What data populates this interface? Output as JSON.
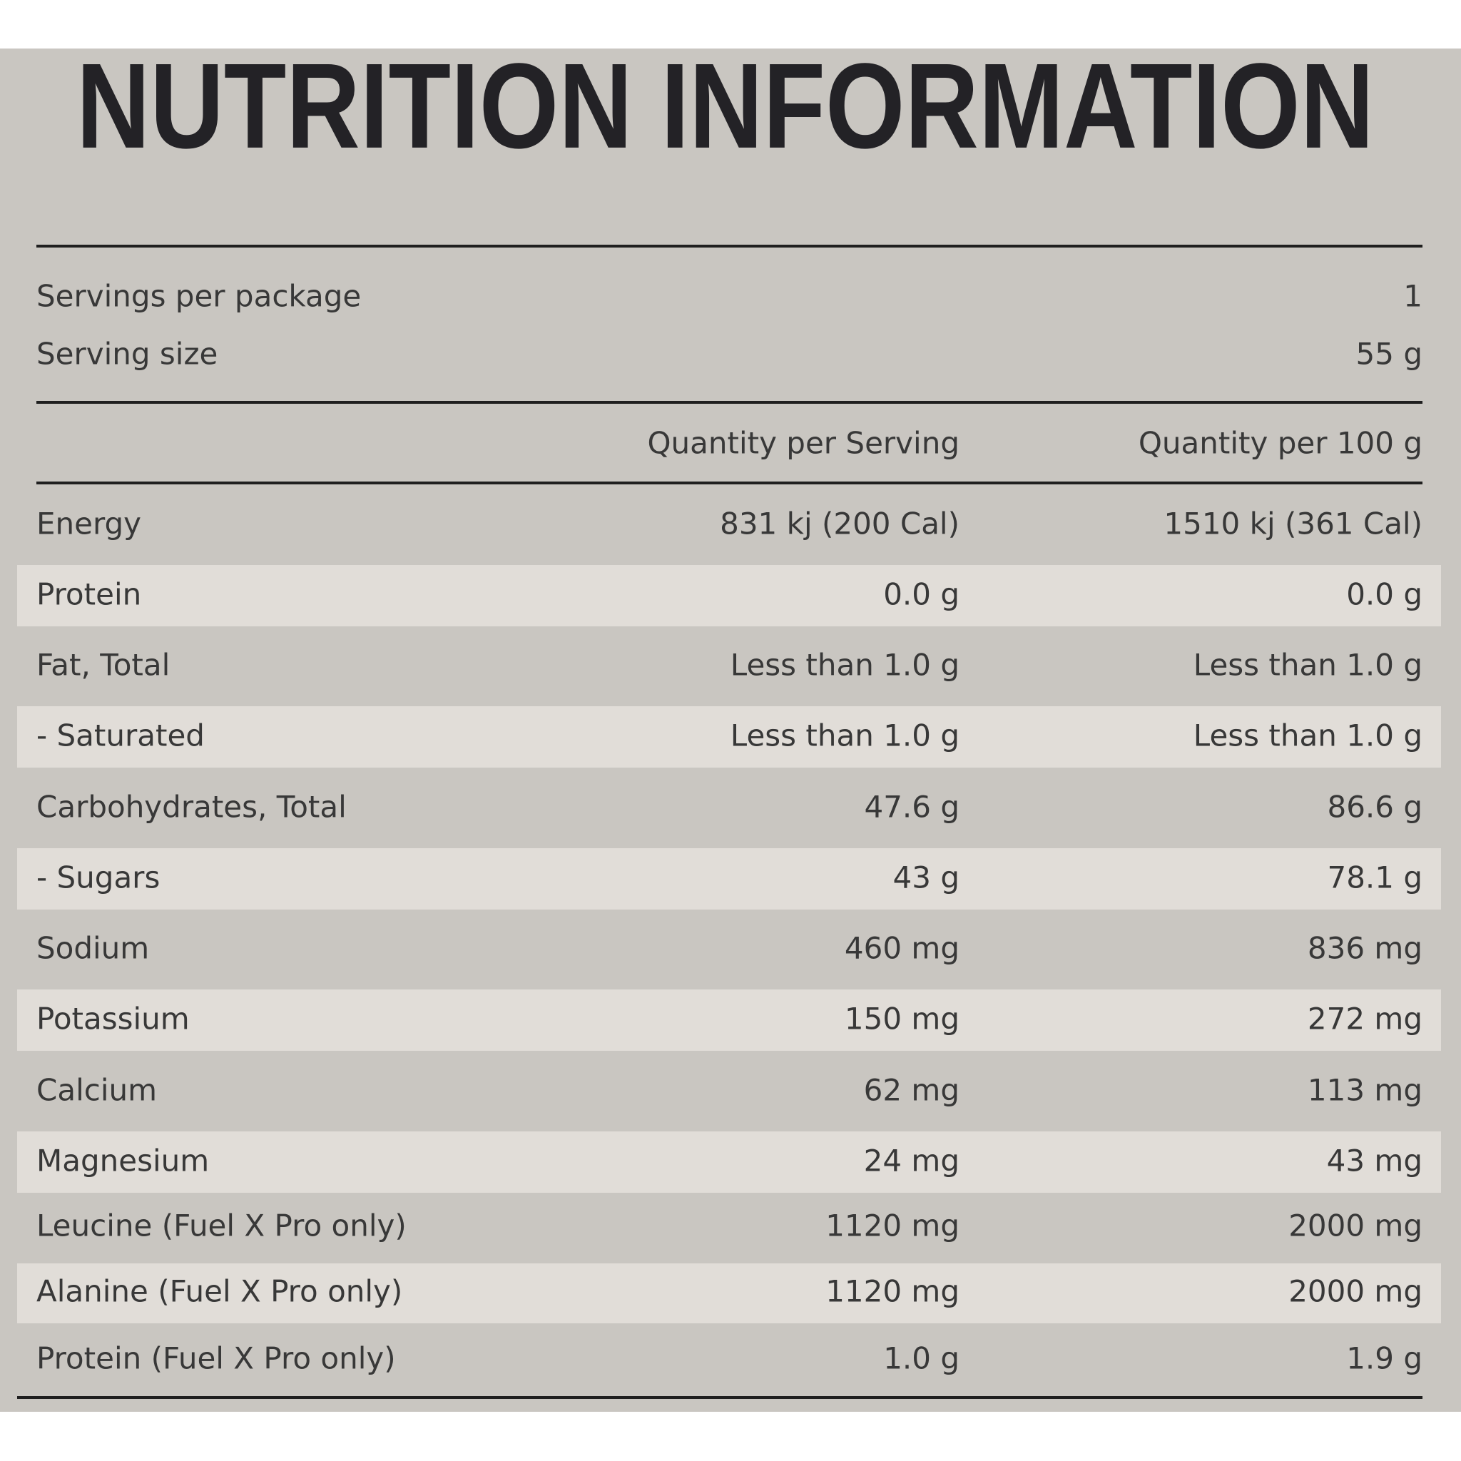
{
  "title": "NUTRITION INFORMATION",
  "servings": [
    {
      "label": "Servings per package",
      "value": "1"
    },
    {
      "label": "Serving size",
      "value": "55 g"
    }
  ],
  "table": {
    "header": [
      "Quantity per Serving",
      "Quantity per 100 g"
    ],
    "rows": [
      [
        "Energy",
        "831 kj (200 Cal)",
        "1510 kj (361 Cal)"
      ],
      [
        "Protein",
        "0.0 g",
        "0.0 g"
      ],
      [
        "Fat, Total",
        "Less than 1.0 g",
        "Less than 1.0 g"
      ],
      [
        "- Saturated",
        "Less than 1.0 g",
        "Less than 1.0 g"
      ],
      [
        "Carbohydrates, Total",
        "47.6 g",
        "86.6 g"
      ],
      [
        "- Sugars",
        "43 g",
        "78.1 g"
      ],
      [
        "Sodium",
        "460 mg",
        "836 mg"
      ],
      [
        "Potassium",
        "150 mg",
        "272 mg"
      ],
      [
        "Calcium",
        "62 mg",
        "113 mg"
      ],
      [
        "Magnesium",
        "24 mg",
        "43 mg"
      ],
      [
        "Leucine (Fuel X Pro only)",
        "1120 mg",
        "2000 mg"
      ],
      [
        "Alanine (Fuel X Pro only)",
        "1120 mg",
        "2000 mg"
      ],
      [
        "Protein (Fuel X Pro only)",
        "1.0 g",
        "1.9 g"
      ]
    ]
  }
}
